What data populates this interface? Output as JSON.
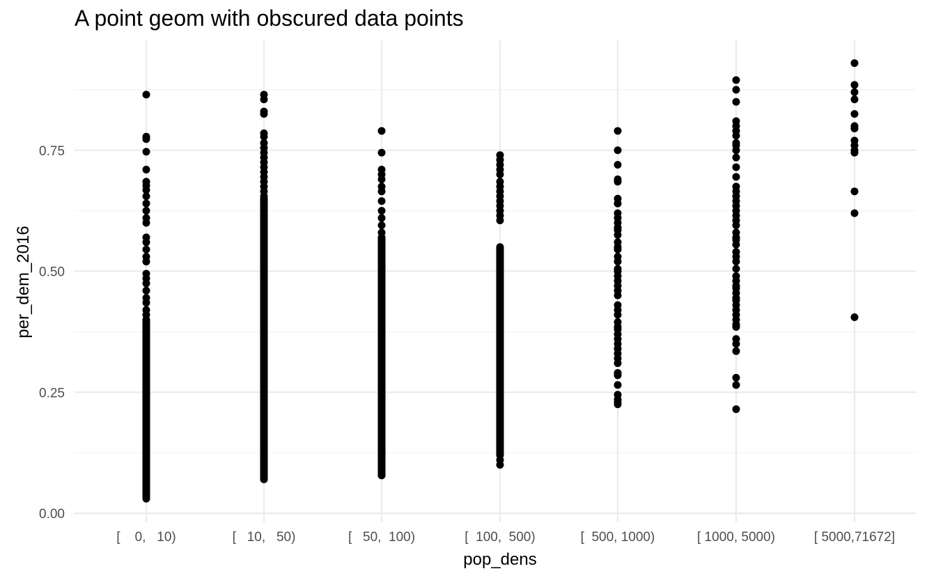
{
  "chart_data": {
    "type": "scatter",
    "title": "A point geom with obscured data points",
    "xlabel": "pop_dens",
    "ylabel": "per_dem_2016",
    "categories": [
      "[    0,   10)",
      "[   10,   50)",
      "[   50,  100)",
      "[  100,  500)",
      "[  500, 1000)",
      "[ 1000, 5000)",
      "[ 5000,71672]"
    ],
    "y_ticks": [
      {
        "value": 0.0,
        "label": "0.00"
      },
      {
        "value": 0.25,
        "label": "0.25"
      },
      {
        "value": 0.5,
        "label": "0.50"
      },
      {
        "value": 0.75,
        "label": "0.75"
      }
    ],
    "ylim": [
      0.0,
      0.9
    ],
    "grid": true,
    "point_color": "#000000",
    "grid_major_color": "#ebebeb",
    "grid_minor_color": "#f3f3f3",
    "groups": [
      {
        "category": "[    0,   10)",
        "ranges": [
          [
            0.03,
            0.4
          ]
        ],
        "points": [
          0.865,
          0.778,
          0.773,
          0.747,
          0.71,
          0.685,
          0.677,
          0.668,
          0.655,
          0.64,
          0.625,
          0.61,
          0.6,
          0.57,
          0.56,
          0.545,
          0.53,
          0.52,
          0.495,
          0.485,
          0.475,
          0.46,
          0.445,
          0.435,
          0.42,
          0.41
        ]
      },
      {
        "category": "[   10,   50)",
        "ranges": [
          [
            0.07,
            0.65
          ]
        ],
        "points": [
          0.865,
          0.855,
          0.83,
          0.825,
          0.785,
          0.778,
          0.765,
          0.755,
          0.745,
          0.735,
          0.725,
          0.715,
          0.705,
          0.695,
          0.685,
          0.675,
          0.665,
          0.655
        ]
      },
      {
        "category": "[   50,  100)",
        "ranges": [
          [
            0.08,
            0.57
          ]
        ],
        "points": [
          0.79,
          0.745,
          0.71,
          0.7,
          0.69,
          0.675,
          0.665,
          0.645,
          0.625,
          0.61,
          0.595,
          0.58,
          0.1,
          0.09,
          0.085,
          0.078
        ]
      },
      {
        "category": "[  100,  500)",
        "ranges": [
          [
            0.12,
            0.55
          ]
        ],
        "points": [
          0.74,
          0.73,
          0.72,
          0.71,
          0.7,
          0.685,
          0.675,
          0.665,
          0.655,
          0.645,
          0.635,
          0.625,
          0.615,
          0.605,
          0.1,
          0.11
        ]
      },
      {
        "category": "[  500, 1000)",
        "ranges": [],
        "points": [
          0.79,
          0.75,
          0.72,
          0.69,
          0.685,
          0.65,
          0.64,
          0.62,
          0.61,
          0.6,
          0.59,
          0.585,
          0.575,
          0.56,
          0.55,
          0.545,
          0.53,
          0.52,
          0.505,
          0.5,
          0.49,
          0.48,
          0.47,
          0.46,
          0.45,
          0.43,
          0.42,
          0.41,
          0.395,
          0.385,
          0.38,
          0.37,
          0.36,
          0.35,
          0.34,
          0.33,
          0.32,
          0.31,
          0.29,
          0.285,
          0.265,
          0.245,
          0.235,
          0.23,
          0.225
        ]
      },
      {
        "category": "[ 1000, 5000)",
        "ranges": [],
        "points": [
          0.895,
          0.875,
          0.85,
          0.81,
          0.8,
          0.79,
          0.78,
          0.765,
          0.76,
          0.75,
          0.735,
          0.715,
          0.695,
          0.675,
          0.665,
          0.655,
          0.645,
          0.635,
          0.625,
          0.615,
          0.605,
          0.595,
          0.58,
          0.57,
          0.565,
          0.555,
          0.54,
          0.53,
          0.52,
          0.505,
          0.49,
          0.48,
          0.47,
          0.465,
          0.455,
          0.445,
          0.44,
          0.43,
          0.42,
          0.41,
          0.4,
          0.39,
          0.385,
          0.36,
          0.35,
          0.335,
          0.28,
          0.265,
          0.215
        ]
      },
      {
        "category": "[ 5000,71672]",
        "ranges": [],
        "points": [
          0.93,
          0.885,
          0.87,
          0.855,
          0.825,
          0.8,
          0.795,
          0.77,
          0.76,
          0.75,
          0.745,
          0.665,
          0.62,
          0.405
        ]
      }
    ]
  }
}
